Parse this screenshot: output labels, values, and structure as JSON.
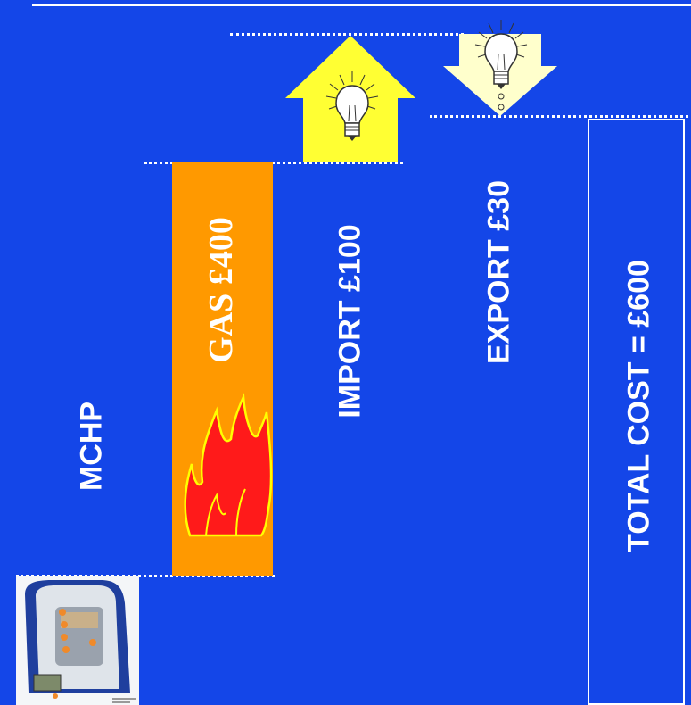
{
  "labels": {
    "mchp": "MCHP",
    "gas": "GAS  £400",
    "import": "IMPORT £100",
    "export": "EXPORT £30",
    "total": "TOTAL COST = £600"
  },
  "colors": {
    "background": "#1446e8",
    "gas_bar": "#ff9900",
    "flame": "#ff1a1a",
    "flame_outline": "#ffff00",
    "import_arrow": "#ffff33",
    "export_arrow": "#ffffcc",
    "text": "#ffffff"
  },
  "icons": {
    "import": "lightbulb-icon",
    "export": "lightbulb-icon",
    "gas": "flame-icon",
    "mchp": "boiler-unit-image"
  }
}
